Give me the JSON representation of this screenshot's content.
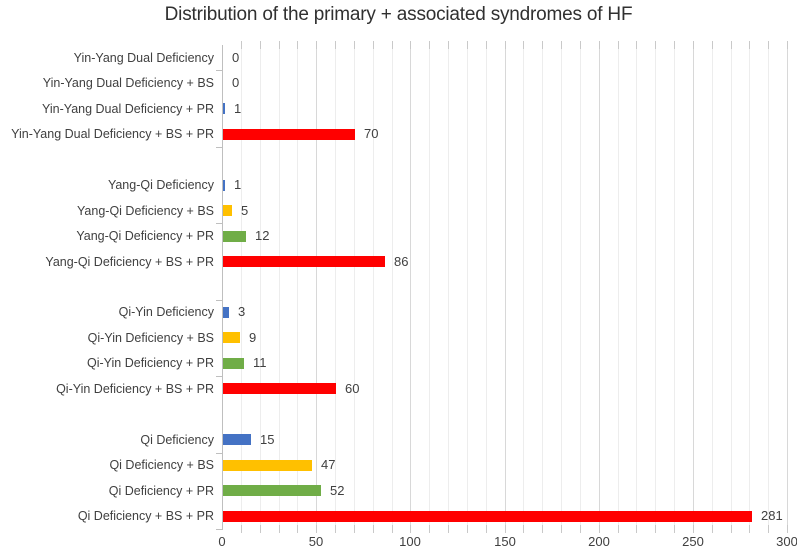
{
  "page": {
    "title": "Distribution of the primary + associated syndromes of HF"
  },
  "colors": {
    "blue": "#4472C4",
    "yellow": "#FFC000",
    "green": "#70AD47",
    "red": "#FF0000",
    "grid_minor": "#EDEDED",
    "grid_major": "#D8D8D8",
    "axis_line": "#BFBFBF",
    "tick_mark": "#C9C9C9",
    "label_text": "#404040",
    "title_text": "#303030",
    "background": "#FFFFFF"
  },
  "chart_data": {
    "type": "bar",
    "orientation": "horizontal",
    "title": "Distribution of the primary + associated syndromes of HF",
    "xlabel": "",
    "ylabel": "",
    "xlim": [
      0,
      300
    ],
    "x_major_ticks": [
      0,
      50,
      100,
      150,
      200,
      250,
      300
    ],
    "x_minor_grid_step": 10,
    "grid": "vertical minor every 10, major every 50",
    "legend": "none",
    "value_labels": "outside end of bar",
    "series_colors": {
      "syndrome_alone": "#4472C4",
      "plus_BS": "#FFC000",
      "plus_PR": "#70AD47",
      "plus_BS_PR": "#FF0000"
    },
    "groups": [
      {
        "name": "Yin-Yang Dual Deficiency",
        "bars": [
          {
            "label": "Yin-Yang Dual Deficiency",
            "value": 0,
            "color": "#4472C4"
          },
          {
            "label": "Yin-Yang Dual Deficiency + BS",
            "value": 0,
            "color": "#FFC000"
          },
          {
            "label": "Yin-Yang Dual Deficiency + PR",
            "value": 1,
            "color": "#4472C4"
          },
          {
            "label": "Yin-Yang Dual Deficiency + BS + PR",
            "value": 70,
            "color": "#FF0000"
          }
        ]
      },
      {
        "name": "Yang-Qi Deficiency",
        "bars": [
          {
            "label": "Yang-Qi Deficiency",
            "value": 1,
            "color": "#4472C4"
          },
          {
            "label": "Yang-Qi Deficiency + BS",
            "value": 5,
            "color": "#FFC000"
          },
          {
            "label": "Yang-Qi Deficiency + PR",
            "value": 12,
            "color": "#70AD47"
          },
          {
            "label": "Yang-Qi Deficiency + BS + PR",
            "value": 86,
            "color": "#FF0000"
          }
        ]
      },
      {
        "name": "Qi-Yin Deficiency",
        "bars": [
          {
            "label": "Qi-Yin Deficiency",
            "value": 3,
            "color": "#4472C4"
          },
          {
            "label": "Qi-Yin Deficiency + BS",
            "value": 9,
            "color": "#FFC000"
          },
          {
            "label": "Qi-Yin Deficiency + PR",
            "value": 11,
            "color": "#70AD47"
          },
          {
            "label": "Qi-Yin Deficiency + BS + PR",
            "value": 60,
            "color": "#FF0000"
          }
        ]
      },
      {
        "name": "Qi Deficiency",
        "bars": [
          {
            "label": "Qi Deficiency",
            "value": 15,
            "color": "#4472C4"
          },
          {
            "label": "Qi Deficiency + BS",
            "value": 47,
            "color": "#FFC000"
          },
          {
            "label": "Qi Deficiency + PR",
            "value": 52,
            "color": "#70AD47"
          },
          {
            "label": "Qi Deficiency + BS + PR",
            "value": 281,
            "color": "#FF0000"
          }
        ]
      }
    ]
  }
}
